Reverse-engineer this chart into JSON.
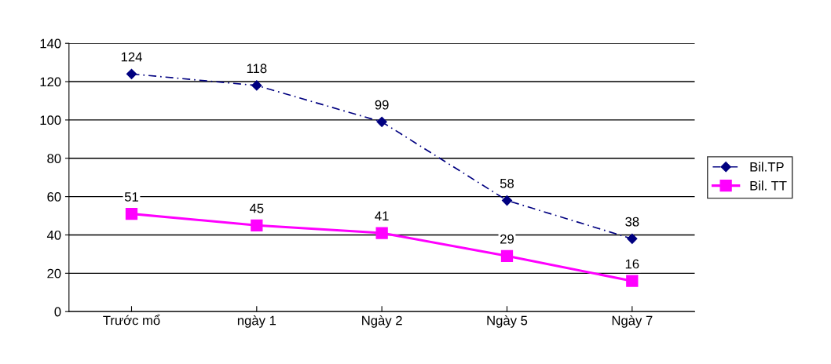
{
  "chart_data": {
    "type": "line",
    "categories": [
      "Trước mổ",
      "ngày 1",
      "Ngày 2",
      "Ngày 5",
      "Ngày 7"
    ],
    "series": [
      {
        "name": "Bil.TP",
        "color": "#000080",
        "values": [
          124,
          118,
          99,
          58,
          38
        ],
        "marker": "diamond",
        "line_style": "dashed"
      },
      {
        "name": "Bil. TT",
        "color": "#ff00ff",
        "values": [
          51,
          45,
          41,
          29,
          16
        ],
        "marker": "square",
        "line_style": "solid"
      }
    ],
    "ylim": [
      0,
      140
    ],
    "yticks": [
      0,
      20,
      40,
      60,
      80,
      100,
      120,
      140
    ],
    "grid": "y",
    "legend": "right",
    "data_labels": true
  }
}
